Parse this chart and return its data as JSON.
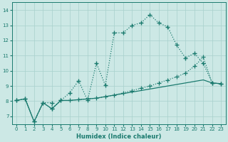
{
  "xlabel": "Humidex (Indice chaleur)",
  "xlim": [
    -0.5,
    23.5
  ],
  "ylim": [
    6.5,
    14.5
  ],
  "xticks": [
    0,
    1,
    2,
    3,
    4,
    5,
    6,
    7,
    8,
    9,
    10,
    11,
    12,
    13,
    14,
    15,
    16,
    17,
    18,
    19,
    20,
    21,
    22,
    23
  ],
  "yticks": [
    7,
    8,
    9,
    10,
    11,
    12,
    13,
    14
  ],
  "bg_color": "#cce8e5",
  "grid_color": "#a8d0cc",
  "line_color": "#1a7a6e",
  "line1_x": [
    0,
    1,
    2,
    3,
    4,
    4,
    5,
    6,
    7,
    8,
    9,
    10,
    11,
    12,
    13,
    14,
    15,
    16,
    17,
    18,
    19,
    20,
    21,
    22,
    23
  ],
  "line1_y": [
    8.05,
    8.15,
    6.65,
    7.9,
    7.9,
    7.5,
    8.05,
    8.55,
    9.35,
    8.05,
    10.5,
    9.05,
    12.5,
    12.5,
    13.0,
    13.15,
    13.7,
    13.15,
    12.9,
    11.7,
    10.85,
    11.15,
    10.5,
    9.2,
    9.15
  ],
  "line2_x": [
    0,
    1,
    2,
    3,
    4,
    5,
    6,
    7,
    8,
    9,
    10,
    11,
    12,
    13,
    14,
    15,
    16,
    17,
    18,
    19,
    20,
    21,
    22,
    23
  ],
  "line2_y": [
    8.05,
    8.15,
    6.65,
    7.9,
    7.5,
    8.05,
    8.05,
    8.1,
    8.15,
    8.2,
    8.3,
    8.4,
    8.55,
    8.7,
    8.85,
    9.0,
    9.2,
    9.4,
    9.6,
    9.85,
    10.3,
    10.9,
    9.2,
    9.15
  ],
  "line3_x": [
    0,
    1,
    2,
    3,
    4,
    5,
    6,
    7,
    8,
    9,
    10,
    11,
    12,
    13,
    14,
    15,
    16,
    17,
    18,
    19,
    20,
    21,
    22,
    23
  ],
  "line3_y": [
    8.05,
    8.15,
    6.65,
    7.9,
    7.5,
    8.05,
    8.05,
    8.1,
    8.15,
    8.2,
    8.3,
    8.4,
    8.5,
    8.6,
    8.7,
    8.8,
    8.9,
    9.0,
    9.1,
    9.2,
    9.3,
    9.4,
    9.2,
    9.15
  ]
}
